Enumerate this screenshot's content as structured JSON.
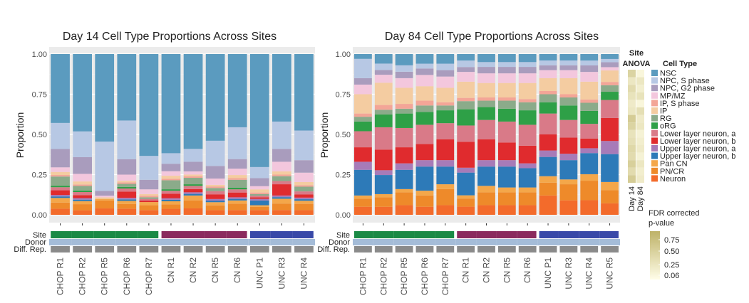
{
  "colors": {
    "NSC": "#5b9bbf",
    "NPC, S phase": "#b7c8e4",
    "NPC, G2 phase": "#a99cbd",
    "MP/MZ": "#f3c7dd",
    "IP": "#f4cca1",
    "IP, S phase": "#f3a597",
    "RG": "#8bab8a",
    "oRG": "#2ea047",
    "Lower layer neuron, a": "#d97a88",
    "Lower layer neuron, b": "#e02b2e",
    "Upper layer neuron, a": "#a77bb8",
    "Upper layer neuron, b": "#2d7ab8",
    "Pan CN": "#f4a74a",
    "PN/CR": "#ee8a2a",
    "Neuron": "#f36b2b",
    "site_chop": "#1a8a45",
    "site_cn": "#8b2a5e",
    "site_unc": "#3848a8",
    "donor": "#a4bcd8",
    "diffrep": "#8a8a8a",
    "panel_bg": "#ebebeb"
  },
  "cell_types": [
    "NSC",
    "NPC, S phase",
    "NPC, G2 phase",
    "MP/MZ",
    "IP",
    "IP, S phase",
    "RG",
    "oRG",
    "Lower layer neuron, a",
    "Lower layer neuron, b",
    "Upper layer neuron, a",
    "Upper layer neuron, b",
    "Pan CN",
    "PN/CR",
    "Neuron"
  ],
  "legend": {
    "title": "Cell Type",
    "items": [
      "NSC",
      "NPC, S phase",
      "NPC, G2 phase",
      "MP/MZ",
      "IP, S phase",
      "IP",
      "RG",
      "oRG",
      "Lower layer neuron, a",
      "Lower layer neuron, b",
      "Upper layer neuron, a",
      "Upper layer neuron, b",
      "Pan CN",
      "PN/CR",
      "Neuron"
    ]
  },
  "track_labels": [
    "Site",
    "Donor",
    "Diff. Rep."
  ],
  "anova": {
    "title_site": "Site",
    "title_anova": "ANOVA",
    "col_labels": [
      "Day 14",
      "Day 84"
    ],
    "day14": [
      0.55,
      0.3,
      0.45,
      0.35,
      0.25,
      0.3,
      0.65,
      0.55,
      0.35,
      0.4,
      0.5,
      0.45,
      0.6,
      0.45,
      0.65
    ],
    "day84": [
      0.1,
      0.3,
      0.2,
      0.35,
      0.1,
      0.4,
      0.25,
      0.3,
      0.15,
      0.2,
      0.25,
      0.15,
      0.3,
      0.2,
      0.25
    ]
  },
  "fdr_legend": {
    "title_line1": "FDR corrected",
    "title_line2": "p-value",
    "ticks": [
      "0.75",
      "0.50",
      "0.25",
      "0.06"
    ]
  },
  "chart_data": [
    {
      "type": "bar",
      "stacked": true,
      "title": "Day 14 Cell Type Proportions Across Sites",
      "xlabel": "",
      "ylabel": "Proportion",
      "ylim": [
        0,
        1
      ],
      "yticks": [
        "0.00",
        "0.25",
        "0.50",
        "0.75",
        "1.00"
      ],
      "grid": true,
      "categories": [
        "CHOP R1",
        "CHOP R2",
        "CHOP R5",
        "CHOP R6",
        "CHOP R7",
        "CN R1",
        "CN R2",
        "CN R5",
        "CN R6",
        "UNC P1",
        "UNC R3",
        "UNC R4"
      ],
      "sites": [
        "CHOP",
        "CHOP",
        "CHOP",
        "CHOP",
        "CHOP",
        "CN",
        "CN",
        "CN",
        "CN",
        "UNC",
        "UNC",
        "UNC"
      ],
      "bars": [
        {
          "Neuron": 0.04,
          "PN/CR": 0.04,
          "Pan CN": 0.03,
          "Upper layer neuron, b": 0.01,
          "Upper layer neuron, a": 0.01,
          "Lower layer neuron, b": 0.03,
          "Lower layer neuron, a": 0.02,
          "oRG": 0.01,
          "RG": 0.06,
          "IP, S phase": 0.01,
          "IP": 0.02,
          "MP/MZ": 0.03,
          "NPC, G2 phase": 0.12,
          "NPC, S phase": 0.17,
          "NSC": 0.45
        },
        {
          "Neuron": 0.03,
          "PN/CR": 0.04,
          "Pan CN": 0.02,
          "Upper layer neuron, b": 0.01,
          "Upper layer neuron, a": 0.01,
          "Lower layer neuron, b": 0.02,
          "Lower layer neuron, a": 0.02,
          "oRG": 0.01,
          "RG": 0.03,
          "IP, S phase": 0.01,
          "IP": 0.02,
          "MP/MZ": 0.05,
          "NPC, G2 phase": 0.11,
          "NPC, S phase": 0.17,
          "NSC": 0.51
        },
        {
          "Neuron": 0.04,
          "PN/CR": 0.05,
          "Pan CN": 0.01,
          "Upper layer neuron, b": 0.0,
          "Upper layer neuron, a": 0.0,
          "Lower layer neuron, b": 0.0,
          "Lower layer neuron, a": 0.0,
          "oRG": 0.0,
          "RG": 0.0,
          "IP, S phase": 0.0,
          "IP": 0.01,
          "MP/MZ": 0.01,
          "NPC, G2 phase": 0.03,
          "NPC, S phase": 0.31,
          "NSC": 0.55
        },
        {
          "Neuron": 0.04,
          "PN/CR": 0.03,
          "Pan CN": 0.02,
          "Upper layer neuron, b": 0.01,
          "Upper layer neuron, a": 0.01,
          "Lower layer neuron, b": 0.04,
          "Lower layer neuron, a": 0.02,
          "oRG": 0.01,
          "RG": 0.02,
          "IP, S phase": 0.01,
          "IP": 0.01,
          "MP/MZ": 0.04,
          "NPC, G2 phase": 0.1,
          "NPC, S phase": 0.25,
          "NSC": 0.43
        },
        {
          "Neuron": 0.03,
          "PN/CR": 0.03,
          "Pan CN": 0.02,
          "Upper layer neuron, b": 0.0,
          "Upper layer neuron, a": 0.0,
          "Lower layer neuron, b": 0.01,
          "Lower layer neuron, a": 0.01,
          "oRG": 0.0,
          "RG": 0.01,
          "IP, S phase": 0.01,
          "IP": 0.01,
          "MP/MZ": 0.03,
          "NPC, G2 phase": 0.06,
          "NPC, S phase": 0.15,
          "NSC": 0.64
        },
        {
          "Neuron": 0.04,
          "PN/CR": 0.03,
          "Pan CN": 0.02,
          "Upper layer neuron, b": 0.01,
          "Upper layer neuron, a": 0.01,
          "Lower layer neuron, b": 0.03,
          "Lower layer neuron, a": 0.02,
          "oRG": 0.01,
          "RG": 0.06,
          "IP, S phase": 0.01,
          "IP": 0.02,
          "MP/MZ": 0.03,
          "NPC, G2 phase": 0.05,
          "NPC, S phase": 0.07,
          "NSC": 0.66
        },
        {
          "Neuron": 0.04,
          "PN/CR": 0.05,
          "Pan CN": 0.03,
          "Upper layer neuron, b": 0.01,
          "Upper layer neuron, a": 0.01,
          "Lower layer neuron, b": 0.02,
          "Lower layer neuron, a": 0.02,
          "oRG": 0.01,
          "RG": 0.04,
          "IP, S phase": 0.01,
          "IP": 0.01,
          "MP/MZ": 0.02,
          "NPC, G2 phase": 0.06,
          "NPC, S phase": 0.08,
          "NSC": 0.59
        },
        {
          "Neuron": 0.03,
          "PN/CR": 0.03,
          "Pan CN": 0.02,
          "Upper layer neuron, b": 0.01,
          "Upper layer neuron, a": 0.01,
          "Lower layer neuron, b": 0.03,
          "Lower layer neuron, a": 0.02,
          "oRG": 0.0,
          "RG": 0.02,
          "IP, S phase": 0.01,
          "IP": 0.01,
          "MP/MZ": 0.04,
          "NPC, G2 phase": 0.08,
          "NPC, S phase": 0.16,
          "NSC": 0.55
        },
        {
          "Neuron": 0.03,
          "PN/CR": 0.04,
          "Pan CN": 0.02,
          "Upper layer neuron, b": 0.01,
          "Upper layer neuron, a": 0.01,
          "Lower layer neuron, b": 0.03,
          "Lower layer neuron, a": 0.02,
          "oRG": 0.01,
          "RG": 0.05,
          "IP, S phase": 0.01,
          "IP": 0.02,
          "MP/MZ": 0.04,
          "NPC, G2 phase": 0.06,
          "NPC, S phase": 0.2,
          "NSC": 0.46
        },
        {
          "Neuron": 0.03,
          "PN/CR": 0.02,
          "Pan CN": 0.01,
          "Upper layer neuron, b": 0.03,
          "Upper layer neuron, a": 0.01,
          "Lower layer neuron, b": 0.01,
          "Lower layer neuron, a": 0.01,
          "oRG": 0.0,
          "RG": 0.01,
          "IP, S phase": 0.01,
          "IP": 0.02,
          "MP/MZ": 0.02,
          "NPC, G2 phase": 0.05,
          "NPC, S phase": 0.07,
          "NSC": 0.71
        },
        {
          "Neuron": 0.03,
          "PN/CR": 0.04,
          "Pan CN": 0.03,
          "Upper layer neuron, b": 0.01,
          "Upper layer neuron, a": 0.01,
          "Lower layer neuron, b": 0.07,
          "Lower layer neuron, a": 0.02,
          "oRG": 0.0,
          "RG": 0.03,
          "IP, S phase": 0.01,
          "IP": 0.02,
          "MP/MZ": 0.06,
          "NPC, G2 phase": 0.08,
          "NPC, S phase": 0.17,
          "NSC": 0.42
        },
        {
          "Neuron": 0.03,
          "PN/CR": 0.04,
          "Pan CN": 0.02,
          "Upper layer neuron, b": 0.01,
          "Upper layer neuron, a": 0.01,
          "Lower layer neuron, b": 0.02,
          "Lower layer neuron, a": 0.02,
          "oRG": 0.0,
          "RG": 0.03,
          "IP, S phase": 0.01,
          "IP": 0.02,
          "MP/MZ": 0.06,
          "NPC, G2 phase": 0.08,
          "NPC, S phase": 0.19,
          "NSC": 0.49
        }
      ]
    },
    {
      "type": "bar",
      "stacked": true,
      "title": "Day 84 Cell Type Proportions Across Sites",
      "xlabel": "",
      "ylabel": "Proportion",
      "ylim": [
        0,
        1
      ],
      "yticks": [
        "0.00",
        "0.25",
        "0.50",
        "0.75",
        "1.00"
      ],
      "grid": true,
      "categories": [
        "CHOP R1",
        "CHOP R2",
        "CHOP R5",
        "CHOP R6",
        "CHOP R7",
        "CN R1",
        "CN R2",
        "CN R5",
        "CN R6",
        "UNC P1",
        "UNC R3",
        "UNC R4",
        "UNC R5"
      ],
      "sites": [
        "CHOP",
        "CHOP",
        "CHOP",
        "CHOP",
        "CHOP",
        "CN",
        "CN",
        "CN",
        "CN",
        "UNC",
        "UNC",
        "UNC",
        "UNC"
      ],
      "bars": [
        {
          "Neuron": 0.05,
          "PN/CR": 0.05,
          "Pan CN": 0.02,
          "Upper layer neuron, b": 0.16,
          "Upper layer neuron, a": 0.05,
          "Lower layer neuron, b": 0.09,
          "Lower layer neuron, a": 0.1,
          "oRG": 0.06,
          "RG": 0.03,
          "IP, S phase": 0.02,
          "IP": 0.12,
          "MP/MZ": 0.06,
          "NPC, G2 phase": 0.04,
          "NPC, S phase": 0.12,
          "NSC": 0.03
        },
        {
          "Neuron": 0.05,
          "PN/CR": 0.06,
          "Pan CN": 0.02,
          "Upper layer neuron, b": 0.12,
          "Upper layer neuron, a": 0.03,
          "Lower layer neuron, b": 0.13,
          "Lower layer neuron, a": 0.14,
          "oRG": 0.08,
          "RG": 0.03,
          "IP, S phase": 0.03,
          "IP": 0.14,
          "MP/MZ": 0.05,
          "NPC, G2 phase": 0.03,
          "NPC, S phase": 0.04,
          "NSC": 0.06
        },
        {
          "Neuron": 0.06,
          "PN/CR": 0.08,
          "Pan CN": 0.02,
          "Upper layer neuron, b": 0.12,
          "Upper layer neuron, a": 0.04,
          "Lower layer neuron, b": 0.1,
          "Lower layer neuron, a": 0.12,
          "oRG": 0.09,
          "RG": 0.03,
          "IP, S phase": 0.03,
          "IP": 0.1,
          "MP/MZ": 0.06,
          "NPC, G2 phase": 0.04,
          "NPC, S phase": 0.04,
          "NSC": 0.07
        },
        {
          "Neuron": 0.05,
          "PN/CR": 0.07,
          "Pan CN": 0.03,
          "Upper layer neuron, b": 0.15,
          "Upper layer neuron, a": 0.04,
          "Lower layer neuron, b": 0.1,
          "Lower layer neuron, a": 0.12,
          "oRG": 0.08,
          "RG": 0.04,
          "IP, S phase": 0.03,
          "IP": 0.09,
          "MP/MZ": 0.07,
          "NPC, G2 phase": 0.04,
          "NPC, S phase": 0.03,
          "NSC": 0.06
        },
        {
          "Neuron": 0.06,
          "PN/CR": 0.1,
          "Pan CN": 0.03,
          "Upper layer neuron, b": 0.11,
          "Upper layer neuron, a": 0.04,
          "Lower layer neuron, b": 0.13,
          "Lower layer neuron, a": 0.1,
          "oRG": 0.08,
          "RG": 0.03,
          "IP, S phase": 0.02,
          "IP": 0.09,
          "MP/MZ": 0.07,
          "NPC, G2 phase": 0.04,
          "NPC, S phase": 0.04,
          "NSC": 0.06
        },
        {
          "Neuron": 0.05,
          "PN/CR": 0.05,
          "Pan CN": 0.02,
          "Upper layer neuron, b": 0.14,
          "Upper layer neuron, a": 0.03,
          "Lower layer neuron, b": 0.16,
          "Lower layer neuron, a": 0.1,
          "oRG": 0.1,
          "RG": 0.05,
          "IP, S phase": 0.02,
          "IP": 0.1,
          "MP/MZ": 0.06,
          "NPC, G2 phase": 0.03,
          "NPC, S phase": 0.04,
          "NSC": 0.04
        },
        {
          "Neuron": 0.06,
          "PN/CR": 0.08,
          "Pan CN": 0.04,
          "Upper layer neuron, b": 0.12,
          "Upper layer neuron, a": 0.04,
          "Lower layer neuron, b": 0.13,
          "Lower layer neuron, a": 0.12,
          "oRG": 0.08,
          "RG": 0.04,
          "IP, S phase": 0.02,
          "IP": 0.09,
          "MP/MZ": 0.06,
          "NPC, G2 phase": 0.04,
          "NPC, S phase": 0.03,
          "NSC": 0.05
        },
        {
          "Neuron": 0.06,
          "PN/CR": 0.08,
          "Pan CN": 0.03,
          "Upper layer neuron, b": 0.13,
          "Upper layer neuron, a": 0.04,
          "Lower layer neuron, b": 0.11,
          "Lower layer neuron, a": 0.13,
          "oRG": 0.08,
          "RG": 0.05,
          "IP, S phase": 0.02,
          "IP": 0.09,
          "MP/MZ": 0.06,
          "NPC, G2 phase": 0.04,
          "NPC, S phase": 0.03,
          "NSC": 0.05
        },
        {
          "Neuron": 0.06,
          "PN/CR": 0.08,
          "Pan CN": 0.03,
          "Upper layer neuron, b": 0.12,
          "Upper layer neuron, a": 0.03,
          "Lower layer neuron, b": 0.11,
          "Lower layer neuron, a": 0.13,
          "oRG": 0.09,
          "RG": 0.05,
          "IP, S phase": 0.02,
          "IP": 0.1,
          "MP/MZ": 0.06,
          "NPC, G2 phase": 0.04,
          "NPC, S phase": 0.03,
          "NSC": 0.05
        },
        {
          "Neuron": 0.12,
          "PN/CR": 0.08,
          "Pan CN": 0.04,
          "Upper layer neuron, b": 0.12,
          "Upper layer neuron, a": 0.04,
          "Lower layer neuron, b": 0.1,
          "Lower layer neuron, a": 0.13,
          "oRG": 0.07,
          "RG": 0.05,
          "IP, S phase": 0.02,
          "IP": 0.08,
          "MP/MZ": 0.05,
          "NPC, G2 phase": 0.03,
          "NPC, S phase": 0.03,
          "NSC": 0.04
        },
        {
          "Neuron": 0.09,
          "PN/CR": 0.1,
          "Pan CN": 0.03,
          "Upper layer neuron, b": 0.12,
          "Upper layer neuron, a": 0.04,
          "Lower layer neuron, b": 0.1,
          "Lower layer neuron, a": 0.11,
          "oRG": 0.09,
          "RG": 0.05,
          "IP, S phase": 0.02,
          "IP": 0.1,
          "MP/MZ": 0.05,
          "NPC, G2 phase": 0.03,
          "NPC, S phase": 0.03,
          "NSC": 0.04
        },
        {
          "Neuron": 0.09,
          "PN/CR": 0.12,
          "Pan CN": 0.04,
          "Upper layer neuron, b": 0.13,
          "Upper layer neuron, a": 0.03,
          "Lower layer neuron, b": 0.06,
          "Lower layer neuron, a": 0.09,
          "oRG": 0.08,
          "RG": 0.05,
          "IP, S phase": 0.02,
          "IP": 0.11,
          "MP/MZ": 0.06,
          "NPC, G2 phase": 0.04,
          "NPC, S phase": 0.03,
          "NSC": 0.04
        },
        {
          "Neuron": 0.07,
          "PN/CR": 0.08,
          "Pan CN": 0.05,
          "Upper layer neuron, b": 0.17,
          "Upper layer neuron, a": 0.08,
          "Lower layer neuron, b": 0.14,
          "Lower layer neuron, a": 0.11,
          "oRG": 0.05,
          "RG": 0.04,
          "IP, S phase": 0.02,
          "IP": 0.07,
          "MP/MZ": 0.02,
          "NPC, G2 phase": 0.03,
          "NPC, S phase": 0.02,
          "NSC": 0.03
        }
      ]
    }
  ]
}
